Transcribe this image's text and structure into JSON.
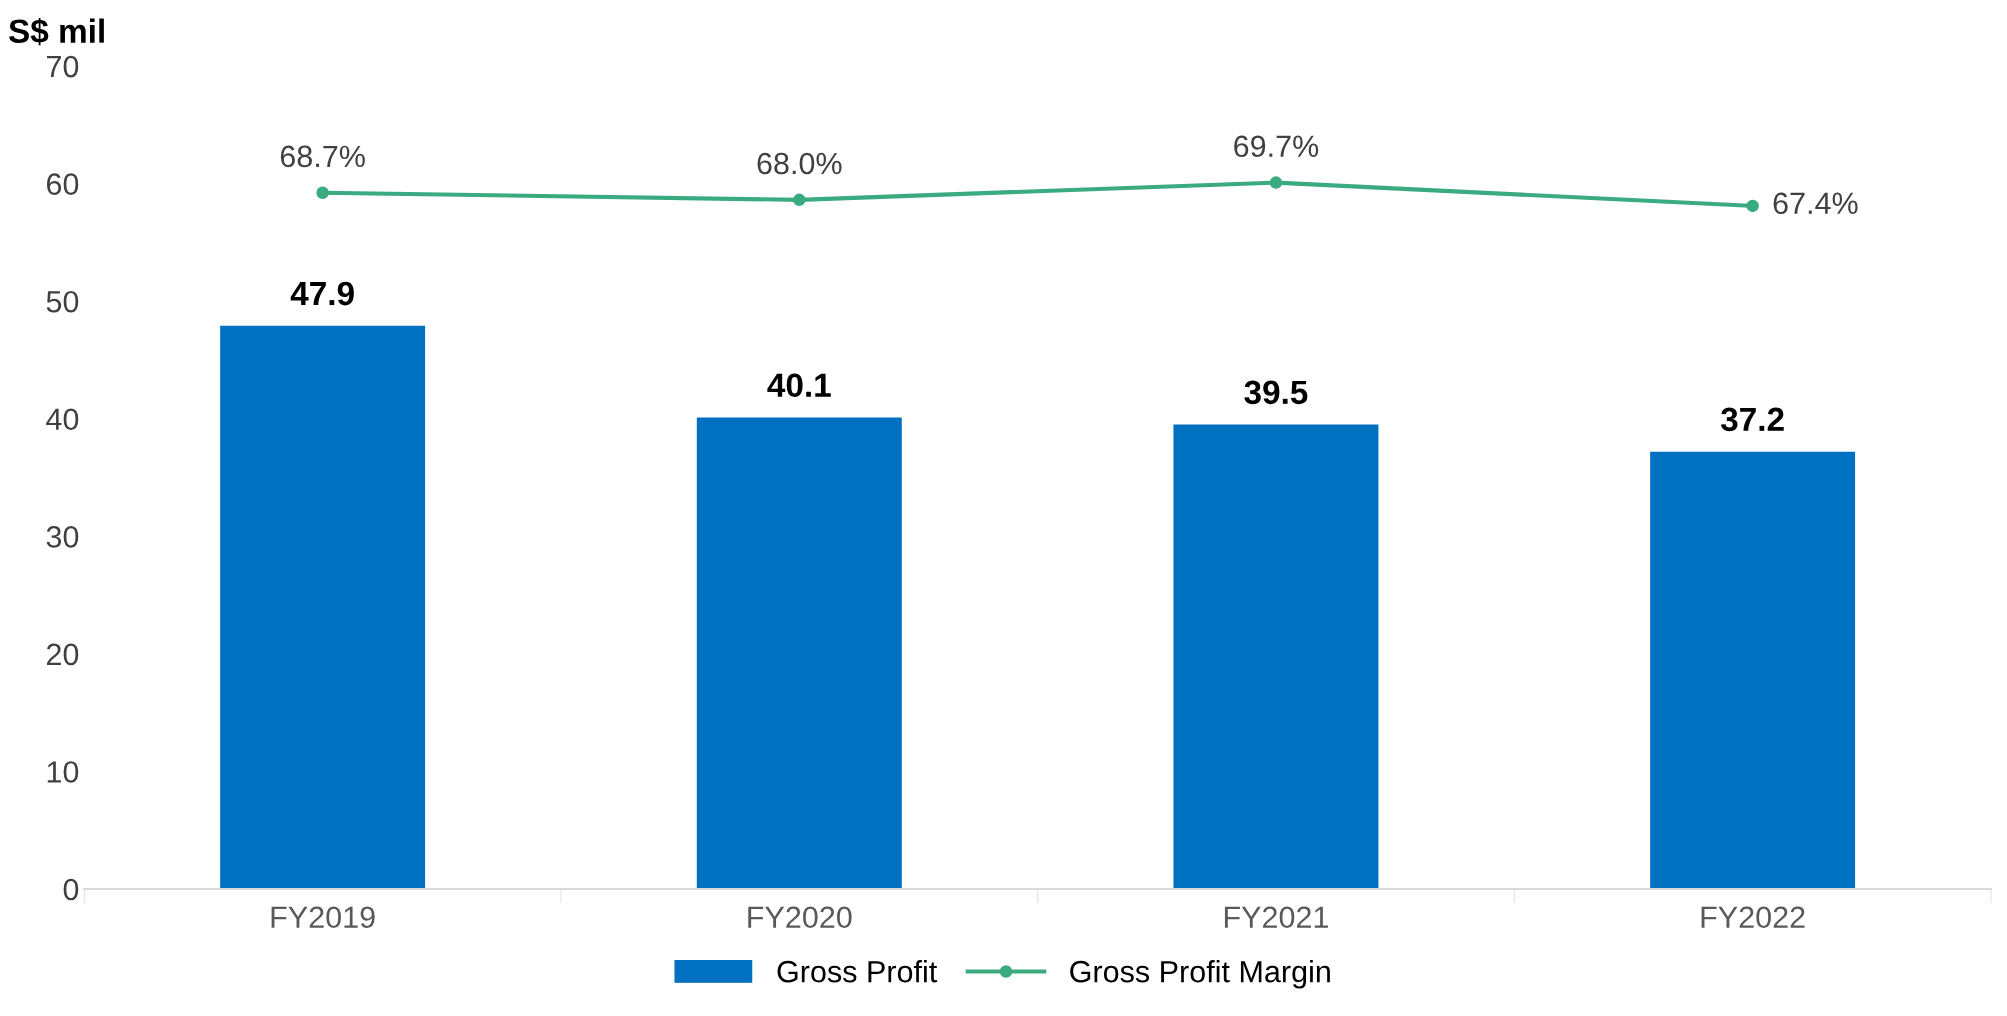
{
  "chart_data": {
    "type": "bar",
    "ylabel": "S$ mil",
    "categories": [
      "FY2019",
      "FY2020",
      "FY2021",
      "FY2022"
    ],
    "series": [
      {
        "name": "Gross Profit",
        "color": "#0070c0",
        "values": [
          47.9,
          40.1,
          39.5,
          37.2
        ],
        "value_labels": [
          "47.9",
          "40.1",
          "39.5",
          "37.2"
        ]
      },
      {
        "name": "Gross Profit Margin",
        "type": "line",
        "axis": "y2",
        "color": "#3aaa80",
        "marker": "circle",
        "values": [
          68.7,
          68.0,
          69.7,
          67.4
        ],
        "value_labels": [
          "68.7%",
          "68.0%",
          "69.7%",
          "67.4%"
        ]
      }
    ],
    "ylim": [
      0,
      70
    ],
    "yticks": [
      0,
      10,
      20,
      30,
      40,
      50,
      60,
      70
    ],
    "grid": false,
    "legend": "bottom"
  }
}
